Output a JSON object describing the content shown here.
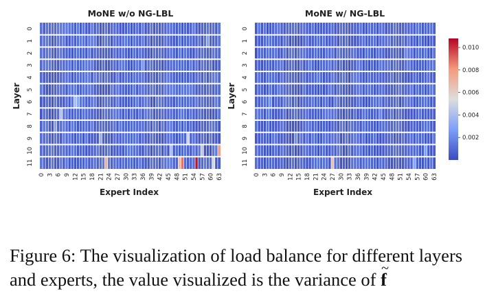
{
  "chart_data": {
    "type": "heatmap",
    "colormap": "coolwarm",
    "colorbar": {
      "min": 0.0,
      "max": 0.0108,
      "ticks": [
        0.002,
        0.004,
        0.006,
        0.008,
        0.01
      ],
      "tick_labels": [
        "0.002",
        "0.004",
        "0.006",
        "0.008",
        "0.010"
      ]
    },
    "panels": [
      {
        "title": "MoNE w/o NG-LBL",
        "xlabel": "Expert Index",
        "ylabel": "Layer",
        "x_tick_labels": [
          "0",
          "3",
          "6",
          "9",
          "12",
          "15",
          "18",
          "21",
          "24",
          "27",
          "30",
          "33",
          "36",
          "39",
          "42",
          "45",
          "48",
          "51",
          "54",
          "57",
          "60",
          "63"
        ],
        "y_tick_labels": [
          "0",
          "1",
          "2",
          "3",
          "4",
          "5",
          "6",
          "7",
          "8",
          "9",
          "10",
          "11"
        ],
        "n_layers": 12,
        "n_experts": 64,
        "baseline": 0.0003,
        "highlights": [
          {
            "layer": 11,
            "expert": 55,
            "value": 0.0105
          },
          {
            "layer": 11,
            "expert": 50,
            "value": 0.0088
          },
          {
            "layer": 11,
            "expert": 49,
            "value": 0.0068
          },
          {
            "layer": 11,
            "expert": 23,
            "value": 0.0072
          },
          {
            "layer": 11,
            "expert": 61,
            "value": 0.0052
          },
          {
            "layer": 10,
            "expert": 63,
            "value": 0.0078
          },
          {
            "layer": 10,
            "expert": 57,
            "value": 0.0045
          },
          {
            "layer": 10,
            "expert": 46,
            "value": 0.004
          },
          {
            "layer": 9,
            "expert": 52,
            "value": 0.005
          },
          {
            "layer": 9,
            "expert": 21,
            "value": 0.0035
          },
          {
            "layer": 7,
            "expert": 7,
            "value": 0.0042
          },
          {
            "layer": 6,
            "expert": 12,
            "value": 0.004
          },
          {
            "layer": 6,
            "expert": 13,
            "value": 0.003
          },
          {
            "layer": 1,
            "expert": 59,
            "value": 0.0028
          },
          {
            "layer": 3,
            "expert": 36,
            "value": 0.0025
          },
          {
            "layer": 8,
            "expert": 5,
            "value": 0.0028
          }
        ]
      },
      {
        "title": "MoNE w/ NG-LBL",
        "xlabel": "Expert Index",
        "ylabel": "Layer",
        "x_tick_labels": [
          "0",
          "3",
          "6",
          "9",
          "12",
          "15",
          "18",
          "21",
          "24",
          "27",
          "30",
          "33",
          "36",
          "39",
          "42",
          "45",
          "48",
          "51",
          "54",
          "57",
          "60",
          "63"
        ],
        "y_tick_labels": [
          "0",
          "1",
          "2",
          "3",
          "4",
          "5",
          "6",
          "7",
          "8",
          "9",
          "10",
          "11"
        ],
        "n_layers": 12,
        "n_experts": 64,
        "baseline": 0.0002,
        "highlights": [
          {
            "layer": 11,
            "expert": 27,
            "value": 0.0065
          },
          {
            "layer": 11,
            "expert": 56,
            "value": 0.003
          },
          {
            "layer": 10,
            "expert": 60,
            "value": 0.0028
          },
          {
            "layer": 9,
            "expert": 14,
            "value": 0.0022
          },
          {
            "layer": 6,
            "expert": 5,
            "value": 0.0022
          },
          {
            "layer": 7,
            "expert": 44,
            "value": 0.002
          },
          {
            "layer": 2,
            "expert": 53,
            "value": 0.0018
          }
        ]
      }
    ]
  },
  "caption": {
    "line1": "Figure 6: The visualization of load balance for different layers",
    "line2": "and experts, the value visualized is the variance of",
    "symbol": "f",
    "tilde": "~"
  }
}
